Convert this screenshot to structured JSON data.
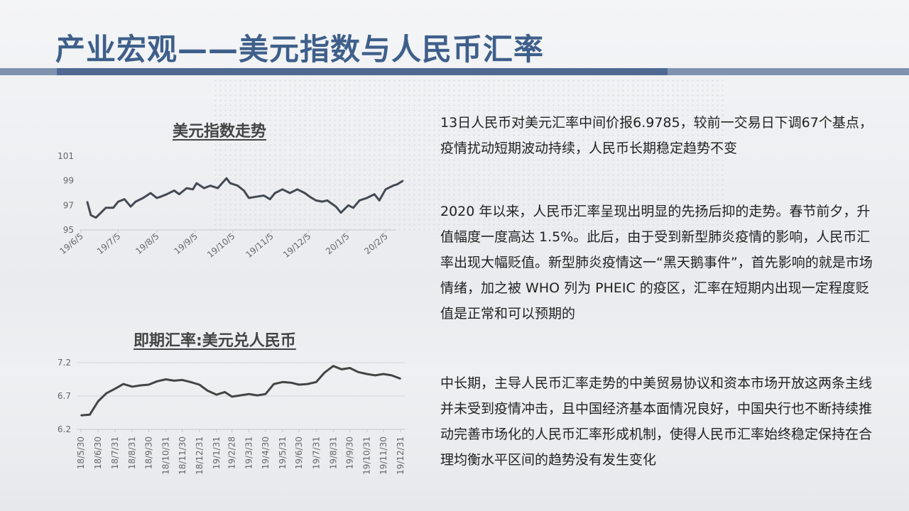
{
  "slide": {
    "title": "产业宏观——美元指数与人民币汇率",
    "paragraphs": [
      "13日人民币对美元汇率中间价报6.9785，较前一交易日下调67个基点，疫情扰动短期波动持续，人民币长期稳定趋势不变",
      "2020 年以来，人民币汇率呈现出明显的先扬后抑的走势。春节前夕，升值幅度一度高达 1.5%。此后，由于受到新型肺炎疫情的影响，人民币汇率出现大幅贬值。新型肺炎疫情这一“黑天鹅事件”，首先影响的就是市场情绪，加之被 WHO 列为 PHEIC 的疫区，汇率在短期内出现一定程度贬值是正常和可以预期的",
      "中长期，主导人民币汇率走势的中美贸易协议和资本市场开放这两条主线并未受到疫情冲击，且中国经济基本面情况良好，中国央行也不断持续推动完善市场化的人民币汇率形成机制，使得人民币汇率始终稳定保持在合理均衡水平区间的趋势没有发生变化"
    ]
  },
  "chart_data": [
    {
      "type": "line",
      "title": "美元指数走势",
      "xlabel": "",
      "ylabel": "",
      "ylim": [
        95,
        101
      ],
      "yticks": [
        "95",
        "97",
        "99",
        "101"
      ],
      "xticks": [
        "19/6/5",
        "19/7/5",
        "19/8/5",
        "19/9/5",
        "19/10/5",
        "19/11/5",
        "19/12/5",
        "20/1/5",
        "20/2/5"
      ],
      "x": [
        "19/6/10",
        "19/6/13",
        "19/6/17",
        "19/6/20",
        "19/6/25",
        "19/7/1",
        "19/7/5",
        "19/7/10",
        "19/7/15",
        "19/7/19",
        "19/7/25",
        "19/7/31",
        "19/8/5",
        "19/8/8",
        "19/8/13",
        "19/8/19",
        "19/8/23",
        "19/8/29",
        "19/9/3",
        "19/9/6",
        "19/9/12",
        "19/9/17",
        "19/9/23",
        "19/9/30",
        "19/10/3",
        "19/10/9",
        "19/10/14",
        "19/10/18",
        "19/10/24",
        "19/10/30",
        "19/11/4",
        "19/11/8",
        "19/11/14",
        "19/11/20",
        "19/11/26",
        "19/12/2",
        "19/12/6",
        "19/12/11",
        "19/12/16",
        "19/12/20",
        "19/12/27",
        "19/12/31",
        "20/1/6",
        "20/1/10",
        "20/1/15",
        "20/1/21",
        "20/1/27",
        "20/1/31",
        "20/2/5",
        "20/2/11",
        "20/2/14",
        "20/2/19"
      ],
      "series": [
        {
          "values": [
            97.3,
            96.2,
            96.0,
            96.3,
            96.8,
            96.8,
            97.3,
            97.5,
            96.9,
            97.3,
            97.6,
            98.0,
            97.6,
            97.7,
            97.9,
            98.2,
            97.9,
            98.4,
            98.3,
            98.8,
            98.4,
            98.6,
            98.4,
            99.2,
            98.8,
            98.6,
            98.2,
            97.6,
            97.7,
            97.8,
            97.5,
            98.0,
            98.3,
            98.0,
            98.3,
            98.0,
            97.7,
            97.4,
            97.3,
            97.4,
            96.9,
            96.4,
            97.0,
            96.8,
            97.4,
            97.6,
            97.9,
            97.4,
            98.3,
            98.6,
            98.7,
            99.0
          ]
        }
      ],
      "grid": false,
      "legend": "none"
    },
    {
      "type": "line",
      "title": "即期汇率:美元兑人民币",
      "xlabel": "",
      "ylabel": "",
      "ylim": [
        6.2,
        7.2
      ],
      "yticks": [
        "6.2",
        "6.7",
        "7.2"
      ],
      "xticks": [
        "18/5/30",
        "18/6/30",
        "18/7/31",
        "18/8/31",
        "18/9/30",
        "18/10/31",
        "18/11/30",
        "18/12/31",
        "19/1/31",
        "19/2/28",
        "19/3/31",
        "19/4/30",
        "19/5/31",
        "19/6/30",
        "19/7/31",
        "19/8/31",
        "19/9/30",
        "19/10/31",
        "19/11/30",
        "19/12/31"
      ],
      "x": [
        "18/5/30",
        "18/6/15",
        "18/6/30",
        "18/7/15",
        "18/7/31",
        "18/8/15",
        "18/8/31",
        "18/9/15",
        "18/9/30",
        "18/10/15",
        "18/10/31",
        "18/11/15",
        "18/11/30",
        "18/12/15",
        "18/12/31",
        "19/1/15",
        "19/1/31",
        "19/2/15",
        "19/2/28",
        "19/3/15",
        "19/3/31",
        "19/4/15",
        "19/4/30",
        "19/5/15",
        "19/5/31",
        "19/6/15",
        "19/6/30",
        "19/7/15",
        "19/7/31",
        "19/8/15",
        "19/8/31",
        "19/9/15",
        "19/9/30",
        "19/10/15",
        "19/10/31",
        "19/11/15",
        "19/11/30",
        "19/12/15",
        "19/12/31"
      ],
      "series": [
        {
          "values": [
            6.41,
            6.42,
            6.62,
            6.74,
            6.81,
            6.88,
            6.84,
            6.86,
            6.87,
            6.92,
            6.95,
            6.93,
            6.94,
            6.91,
            6.87,
            6.78,
            6.72,
            6.76,
            6.69,
            6.71,
            6.73,
            6.71,
            6.73,
            6.88,
            6.91,
            6.9,
            6.87,
            6.88,
            6.91,
            7.05,
            7.15,
            7.1,
            7.12,
            7.06,
            7.03,
            7.01,
            7.03,
            7.01,
            6.96
          ]
        }
      ],
      "grid": true,
      "legend": "none",
      "line_color": "#444444"
    }
  ]
}
